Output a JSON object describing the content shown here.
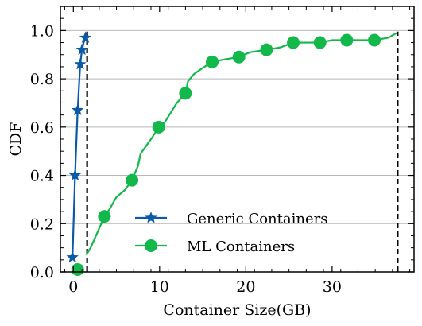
{
  "chart_data": {
    "type": "line",
    "xlabel": "Container Size(GB)",
    "ylabel": "CDF",
    "xlim": [
      -1.5,
      39.5
    ],
    "ylim": [
      0.0,
      1.1
    ],
    "x_ticks": [
      0,
      10,
      20,
      30
    ],
    "y_ticks": [
      0.0,
      0.2,
      0.4,
      0.6,
      0.8,
      1.0
    ],
    "x_tick_labels": [
      "0",
      "10",
      "20",
      "30"
    ],
    "y_tick_labels": [
      "0.0",
      "0.2",
      "0.4",
      "0.6",
      "0.8",
      "1.0"
    ],
    "grid": "horizontal",
    "legend_position": "lower-center",
    "series": [
      {
        "name": "Generic Containers",
        "color": "#0a5aa8",
        "marker": "star",
        "x": [
          -0.1,
          0.2,
          0.5,
          0.8,
          1.0,
          1.4
        ],
        "y": [
          0.06,
          0.4,
          0.67,
          0.86,
          0.92,
          0.97
        ],
        "line_x": [
          -0.1,
          0.2,
          0.5,
          0.8,
          1.0,
          1.2,
          1.4,
          1.6
        ],
        "line_y": [
          0.06,
          0.4,
          0.67,
          0.86,
          0.92,
          0.95,
          0.97,
          0.98
        ]
      },
      {
        "name": "ML Containers",
        "color": "#12b84a",
        "marker": "circle",
        "x": [
          0.5,
          3.6,
          6.8,
          9.9,
          13.0,
          16.1,
          19.2,
          22.4,
          25.5,
          28.6,
          31.7,
          34.9
        ],
        "y": [
          0.01,
          0.23,
          0.38,
          0.6,
          0.74,
          0.87,
          0.89,
          0.92,
          0.95,
          0.95,
          0.96,
          0.96
        ],
        "line_x": [
          1.5,
          2.0,
          2.5,
          3.0,
          3.6,
          4.2,
          5.0,
          6.0,
          6.8,
          7.5,
          7.8,
          8.6,
          9.2,
          9.9,
          10.6,
          11.3,
          12.0,
          13.0,
          13.3,
          14.0,
          14.8,
          16.1,
          17.5,
          19.2,
          20.5,
          22.4,
          24.0,
          25.5,
          27.0,
          28.6,
          30.0,
          31.7,
          33.3,
          34.9,
          36.5,
          37.5
        ],
        "line_y": [
          0.07,
          0.1,
          0.14,
          0.18,
          0.23,
          0.26,
          0.31,
          0.34,
          0.38,
          0.44,
          0.49,
          0.53,
          0.56,
          0.6,
          0.62,
          0.66,
          0.7,
          0.74,
          0.79,
          0.82,
          0.84,
          0.87,
          0.88,
          0.89,
          0.91,
          0.92,
          0.93,
          0.95,
          0.95,
          0.95,
          0.96,
          0.96,
          0.96,
          0.96,
          0.97,
          0.99
        ]
      }
    ],
    "reference_lines": [
      {
        "x": 1.6,
        "style": "dashed",
        "color": "#000000"
      },
      {
        "x": 37.6,
        "style": "dashed",
        "color": "#000000"
      }
    ]
  }
}
